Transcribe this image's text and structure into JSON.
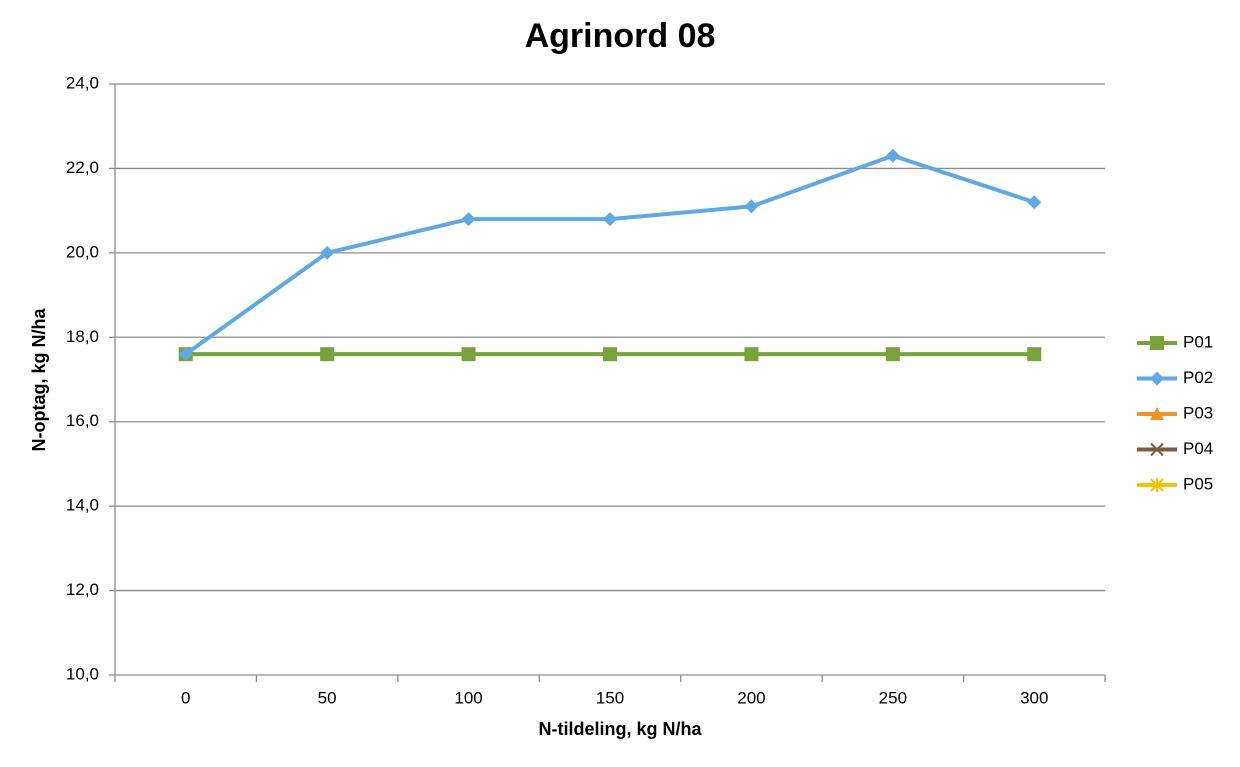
{
  "chart_data": {
    "type": "line",
    "title": "Agrinord 08",
    "x_label": "N-tildeling, kg N/ha",
    "y_label": "N-optag, kg N/ha",
    "categories": [
      "0",
      "50",
      "100",
      "150",
      "200",
      "250",
      "300"
    ],
    "series": [
      {
        "name": "P01",
        "color": "#77a33a",
        "marker": "square",
        "values": [
          17.6,
          17.6,
          17.6,
          17.6,
          17.6,
          17.6,
          17.6
        ]
      },
      {
        "name": "P02",
        "color": "#5ea9e3",
        "marker": "diamond",
        "values": [
          17.6,
          20.0,
          20.8,
          20.8,
          21.1,
          22.3,
          21.2
        ]
      },
      {
        "name": "P03",
        "color": "#f39325",
        "marker": "triangle",
        "values": [
          null,
          null,
          null,
          null,
          null,
          null,
          null
        ]
      },
      {
        "name": "P04",
        "color": "#7a5c45",
        "marker": "x",
        "values": [
          null,
          null,
          null,
          null,
          null,
          null,
          null
        ]
      },
      {
        "name": "P05",
        "color": "#f5c400",
        "marker": "star",
        "values": [
          null,
          null,
          null,
          null,
          null,
          null,
          null
        ]
      }
    ],
    "ylim": [
      10,
      24
    ],
    "yticks": [
      {
        "value": 10,
        "label": "10,0"
      },
      {
        "value": 12,
        "label": "12,0"
      },
      {
        "value": 14,
        "label": "14,0"
      },
      {
        "value": 16,
        "label": "16,0"
      },
      {
        "value": 18,
        "label": "18,0"
      },
      {
        "value": 20,
        "label": "20,0"
      },
      {
        "value": 22,
        "label": "22,0"
      },
      {
        "value": 24,
        "label": "24,0"
      }
    ],
    "grid": true,
    "legend": "right"
  }
}
